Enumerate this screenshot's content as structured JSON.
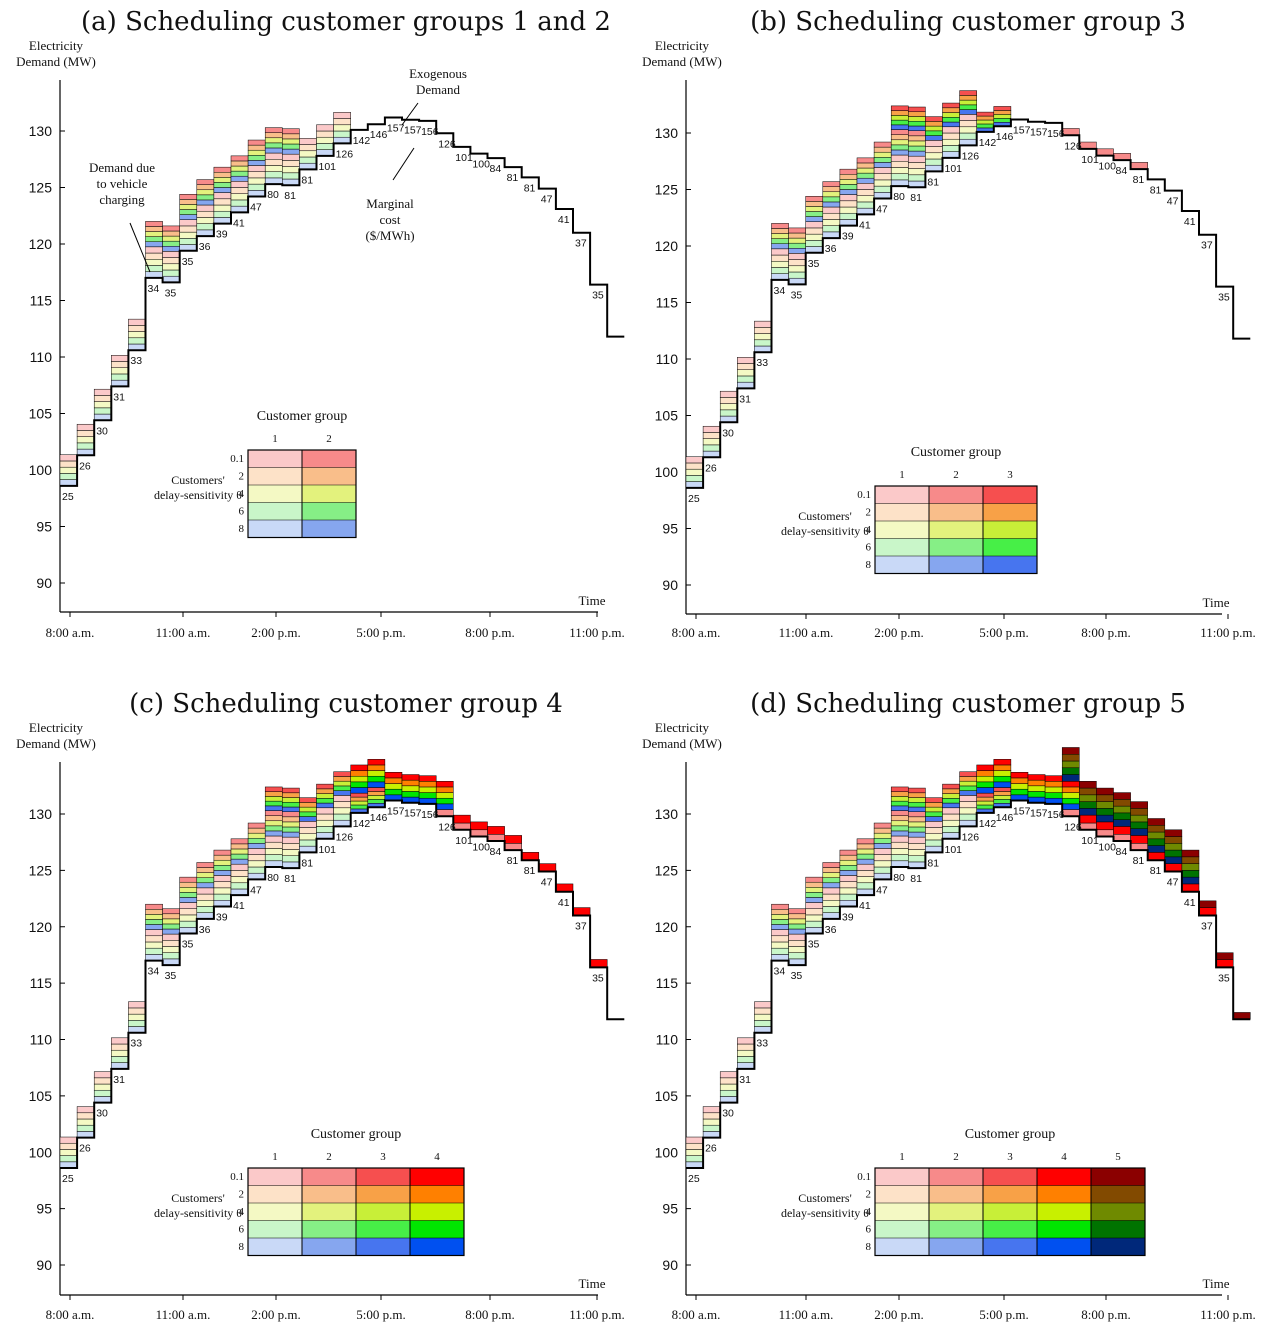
{
  "figure": {
    "exo_demand": [
      98.6,
      101.3,
      104.4,
      107.4,
      110.6,
      117.0,
      116.6,
      119.4,
      120.7,
      121.8,
      122.8,
      124.2,
      125.3,
      125.2,
      126.6,
      127.8,
      128.9,
      130.1,
      130.6,
      131.2,
      131.0,
      130.9,
      129.8,
      128.6,
      128.0,
      127.6,
      126.8,
      125.9,
      124.9,
      123.1,
      121.0,
      116.4,
      111.8
    ],
    "marginal_cost": [
      25,
      26,
      30,
      31,
      33,
      34,
      35,
      35,
      36,
      39,
      41,
      47,
      80,
      81,
      81,
      101,
      126,
      142,
      146,
      157,
      157,
      156,
      126,
      101,
      100,
      84,
      81,
      81,
      47,
      41,
      37,
      35,
      35
    ],
    "theta_values": [
      "0.1",
      "2",
      "4",
      "6",
      "8"
    ],
    "group_colors": [
      [
        "#fbc9c9",
        "#fde2c8",
        "#f4f9c4",
        "#c9f6c9",
        "#c9d9f7"
      ],
      [
        "#f78a8a",
        "#f9be8a",
        "#e3f27d",
        "#86ef86",
        "#86a6ef"
      ],
      [
        "#f64f4f",
        "#f8a147",
        "#c8ef38",
        "#47ef47",
        "#4775ef"
      ],
      [
        "#ff0000",
        "#ff8000",
        "#c8f000",
        "#00e600",
        "#0050f0"
      ],
      [
        "#8b0000",
        "#824a00",
        "#6f8a00",
        "#007300",
        "#00287a"
      ]
    ]
  },
  "chart_data": [
    {
      "type": "area",
      "title": "(a) Scheduling customer groups 1 and 2",
      "ylabel": "Electricity Demand (MW)",
      "xlabel": "Time",
      "ylim": [
        88,
        135
      ],
      "yticks": [
        90,
        95,
        100,
        105,
        110,
        115,
        120,
        125,
        130
      ],
      "xticks": [
        "8:00 a.m.",
        "11:00 a.m.",
        "2:00 p.m.",
        "5:00 p.m.",
        "8:00 p.m.",
        "11:00 p.m."
      ],
      "groups_scheduled": [
        1,
        2
      ],
      "annotations": [
        "Exogenous Demand",
        "Demand due to vehicle charging",
        "Marginal cost ($/MWh)"
      ],
      "legend": {
        "title": "Customer group",
        "row_label": "Customers' delay-sensitivity θ",
        "columns": [
          "1",
          "2"
        ]
      },
      "block_heights": {
        "1": [
          0.6,
          0.6,
          0.6,
          0.6,
          0.6
        ],
        "2": [
          0.5,
          0.5,
          0.5,
          0.5,
          0.5
        ]
      }
    },
    {
      "type": "area",
      "title": "(b) Scheduling customer group 3",
      "ylabel": "Electricity Demand (MW)",
      "xlabel": "Time",
      "ylim": [
        88,
        135
      ],
      "yticks": [
        90,
        95,
        100,
        105,
        110,
        115,
        120,
        125,
        130
      ],
      "xticks": [
        "8:00 a.m.",
        "11:00 a.m.",
        "2:00 p.m.",
        "5:00 p.m.",
        "8:00 p.m.",
        "11:00 p.m."
      ],
      "groups_scheduled": [
        1,
        2,
        3
      ],
      "legend": {
        "title": "Customer group",
        "row_label": "Customers' delay-sensitivity θ",
        "columns": [
          "1",
          "2",
          "3"
        ]
      }
    },
    {
      "type": "area",
      "title": "(c) Scheduling customer group 4",
      "ylabel": "Electricity Demand (MW)",
      "xlabel": "Time",
      "ylim": [
        88,
        135
      ],
      "yticks": [
        90,
        95,
        100,
        105,
        110,
        115,
        120,
        125,
        130
      ],
      "xticks": [
        "8:00 a.m.",
        "11:00 a.m.",
        "2:00 p.m.",
        "5:00 p.m.",
        "8:00 p.m.",
        "11:00 p.m."
      ],
      "groups_scheduled": [
        1,
        2,
        3,
        4
      ],
      "legend": {
        "title": "Customer group",
        "row_label": "Customers' delay-sensitivity θ",
        "columns": [
          "1",
          "2",
          "3",
          "4"
        ]
      }
    },
    {
      "type": "area",
      "title": "(d) Scheduling customer group 5",
      "ylabel": "Electricity Demand (MW)",
      "xlabel": "Time",
      "ylim": [
        88,
        135
      ],
      "yticks": [
        90,
        95,
        100,
        105,
        110,
        115,
        120,
        125,
        130
      ],
      "xticks": [
        "8:00 a.m.",
        "11:00 a.m.",
        "2:00 p.m.",
        "5:00 p.m.",
        "8:00 p.m.",
        "11:00 p.m."
      ],
      "groups_scheduled": [
        1,
        2,
        3,
        4,
        5
      ],
      "legend": {
        "title": "Customer group",
        "row_label": "Customers' delay-sensitivity θ",
        "columns": [
          "1",
          "2",
          "3",
          "4",
          "5"
        ]
      }
    }
  ]
}
